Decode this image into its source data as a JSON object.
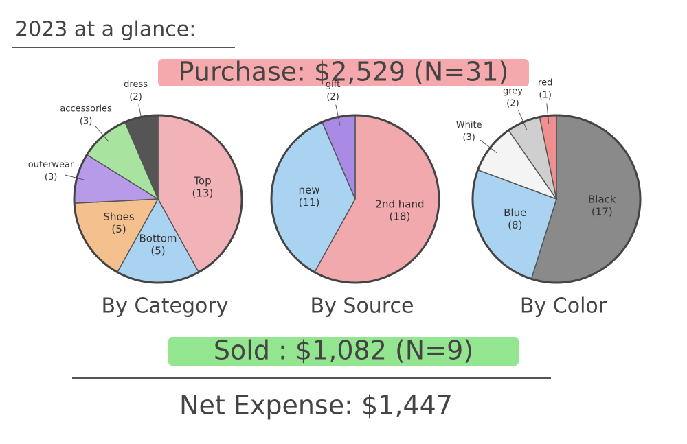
{
  "heading": "2023 at a glance:",
  "purchase": "Purchase: $2,529 (N=31)",
  "chart_data": [
    {
      "type": "pie",
      "title": "By Category",
      "categories": [
        "Top",
        "Bottom",
        "Shoes",
        "outerwear",
        "accessories",
        "dress"
      ],
      "values": [
        13,
        5,
        5,
        3,
        3,
        2
      ],
      "value_labels": [
        "(13)",
        "(5)",
        "(5)",
        "(3)",
        "(3)",
        "(2)"
      ],
      "colors": [
        "#f2b3b8",
        "#a9d3f0",
        "#f4c08e",
        "#b79ae8",
        "#a8e3a0",
        "#555555"
      ]
    },
    {
      "type": "pie",
      "title": "By Source",
      "categories": [
        "2nd hand",
        "new",
        "gift"
      ],
      "values": [
        18,
        11,
        2
      ],
      "value_labels": [
        "(18)",
        "(11)",
        "(2)"
      ],
      "colors": [
        "#f2a9ad",
        "#a9d3f0",
        "#a98be6"
      ]
    },
    {
      "type": "pie",
      "title": "By Color",
      "categories": [
        "Black",
        "Blue",
        "White",
        "grey",
        "red"
      ],
      "values": [
        17,
        8,
        3,
        2,
        1
      ],
      "value_labels": [
        "(17)",
        "(8)",
        "(3)",
        "(2)",
        "(1)"
      ],
      "colors": [
        "#8a8a8a",
        "#a9d3f0",
        "#f4f4f4",
        "#cfcfcf",
        "#ef8f8f"
      ]
    }
  ],
  "sold": "Sold : $1,082 (N=9)",
  "net_expense": "Net Expense: $1,447"
}
